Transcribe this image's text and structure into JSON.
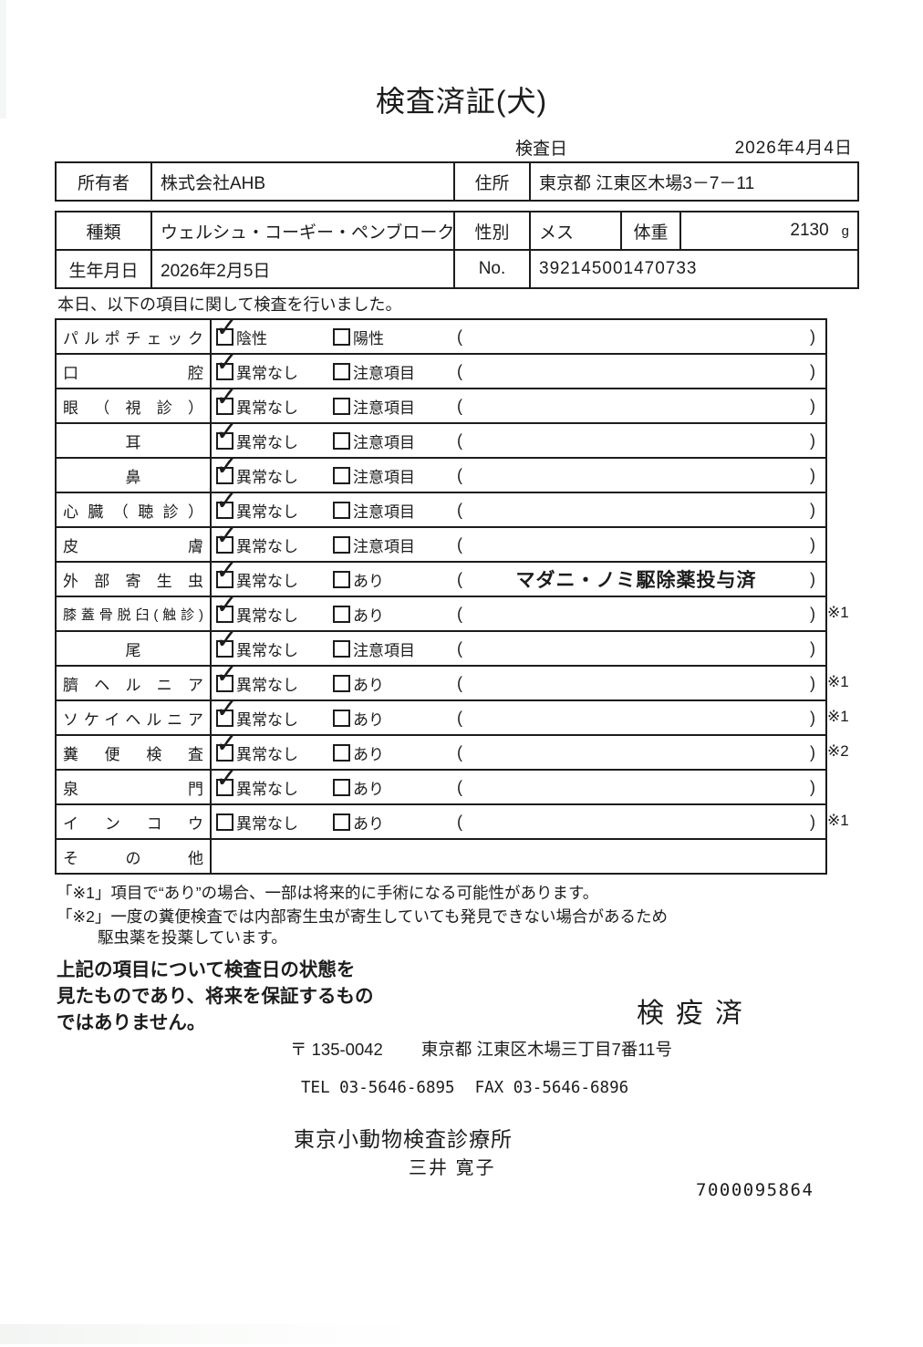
{
  "title": "検査済証(犬)",
  "inspection_date": {
    "label": "検査日",
    "value": "2026年4月4日"
  },
  "owner": {
    "label": "所有者",
    "value": "株式会社AHB",
    "address_label": "住所",
    "address_value": "東京都 江東区木場3－7－11"
  },
  "pet": {
    "breed_label": "種類",
    "breed_value": "ウェルシュ・コーギー・ペンブローク",
    "sex_label": "性別",
    "sex_value": "メス",
    "weight_label": "体重",
    "weight_value": "2130",
    "weight_unit": "g",
    "birth_label": "生年月日",
    "birth_value": "2026年2月5日",
    "no_label": "No.",
    "no_value": "392145001470733"
  },
  "intro": "本日、以下の項目に関して検査を行いました。",
  "exam": {
    "open_bracket": "(",
    "close_bracket": ")",
    "rows": [
      {
        "item": "パルポチェック",
        "align": "justify",
        "opt1": "陰性",
        "checked1": true,
        "opt2": "陽性",
        "checked2": false,
        "note": "",
        "ref": ""
      },
      {
        "item": "口腔",
        "align": "justify",
        "opt1": "異常なし",
        "checked1": true,
        "opt2": "注意項目",
        "checked2": false,
        "note": "",
        "ref": ""
      },
      {
        "item": "眼（視診）",
        "align": "justify",
        "opt1": "異常なし",
        "checked1": true,
        "opt2": "注意項目",
        "checked2": false,
        "note": "",
        "ref": ""
      },
      {
        "item": "耳",
        "align": "center",
        "opt1": "異常なし",
        "checked1": true,
        "opt2": "注意項目",
        "checked2": false,
        "note": "",
        "ref": ""
      },
      {
        "item": "鼻",
        "align": "center",
        "opt1": "異常なし",
        "checked1": true,
        "opt2": "注意項目",
        "checked2": false,
        "note": "",
        "ref": ""
      },
      {
        "item": "心臓（聴診）",
        "align": "justify",
        "opt1": "異常なし",
        "checked1": true,
        "opt2": "注意項目",
        "checked2": false,
        "note": "",
        "ref": ""
      },
      {
        "item": "皮膚",
        "align": "justify",
        "opt1": "異常なし",
        "checked1": true,
        "opt2": "注意項目",
        "checked2": false,
        "note": "",
        "ref": ""
      },
      {
        "item": "外部寄生虫",
        "align": "justify",
        "opt1": "異常なし",
        "checked1": true,
        "opt2": "あり",
        "checked2": false,
        "note": "マダニ・ノミ駆除薬投与済",
        "ref": ""
      },
      {
        "item": "膝蓋骨脱臼(触診)",
        "align": "justify",
        "small": true,
        "opt1": "異常なし",
        "checked1": true,
        "opt2": "あり",
        "checked2": false,
        "note": "",
        "ref": "※1"
      },
      {
        "item": "尾",
        "align": "center",
        "opt1": "異常なし",
        "checked1": true,
        "opt2": "注意項目",
        "checked2": false,
        "note": "",
        "ref": ""
      },
      {
        "item": "臍ヘルニア",
        "align": "justify",
        "opt1": "異常なし",
        "checked1": true,
        "opt2": "あり",
        "checked2": false,
        "note": "",
        "ref": "※1"
      },
      {
        "item": "ソケイヘルニア",
        "align": "justify",
        "opt1": "異常なし",
        "checked1": true,
        "opt2": "あり",
        "checked2": false,
        "note": "",
        "ref": "※1"
      },
      {
        "item": "糞便検査",
        "align": "justify",
        "opt1": "異常なし",
        "checked1": true,
        "opt2": "あり",
        "checked2": false,
        "note": "",
        "ref": "※2"
      },
      {
        "item": "泉門",
        "align": "justify",
        "opt1": "異常なし",
        "checked1": true,
        "opt2": "あり",
        "checked2": false,
        "note": "",
        "ref": ""
      },
      {
        "item": "インコウ",
        "align": "justify",
        "opt1": "異常なし",
        "checked1": false,
        "opt2": "あり",
        "checked2": false,
        "note": "",
        "ref": "※1"
      },
      {
        "item": "その他",
        "align": "justify",
        "other": true
      }
    ]
  },
  "footnotes": {
    "line1": "「※1」項目で“あり”の場合、一部は将来的に手術になる可能性があります。",
    "line2a": "「※2」一度の糞便検査では内部寄生虫が寄生していても発見できない場合があるため",
    "line2b": "駆虫薬を投薬しています。"
  },
  "disclaimer": {
    "line1": "上記の項目について検査日の状態を",
    "line2": "見たものであり、将来を保証するもの",
    "line3": "ではありません。"
  },
  "stamp": "検疫済",
  "clinic": {
    "postal": "〒 135-0042",
    "address": "東京都 江東区木場三丁目7番11号",
    "tel": "TEL 03-5646-6895",
    "fax": "FAX 03-5646-6896",
    "name": "東京小動物検査診療所",
    "vet_name": "三井 寛子",
    "serial": "7000095864"
  }
}
